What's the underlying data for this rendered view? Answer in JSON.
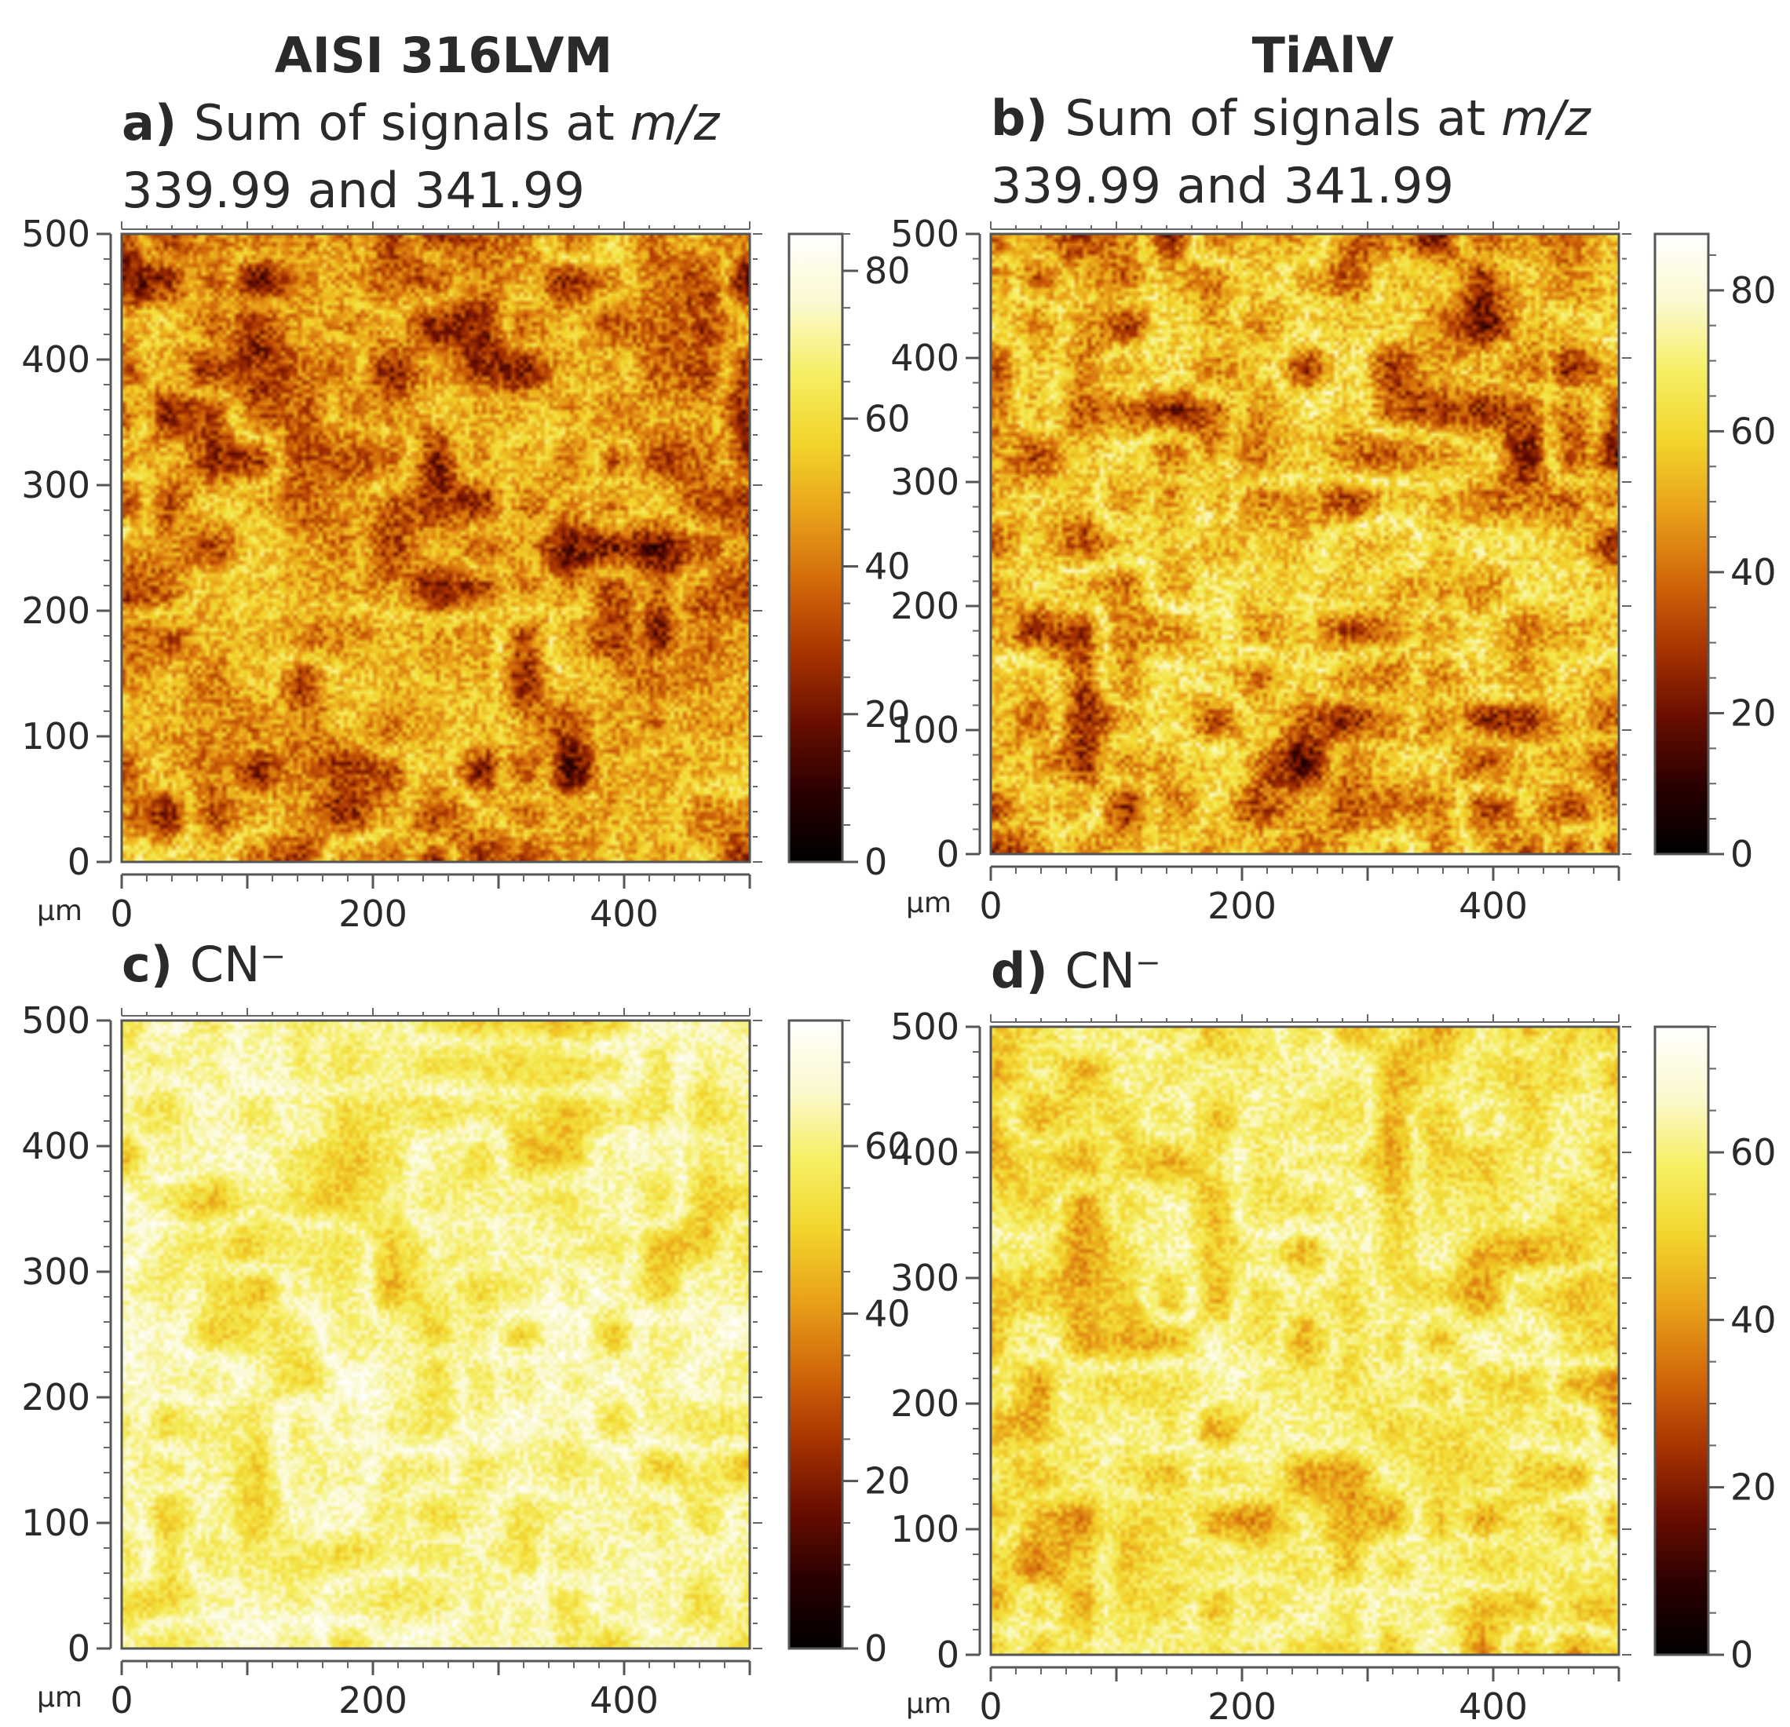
{
  "column_headings": [
    "AISI 316LVM",
    "TiAlV"
  ],
  "colormap": [
    "#000000",
    "#2a0000",
    "#6a0e00",
    "#a83400",
    "#d2690a",
    "#e9a21a",
    "#f2d52c",
    "#f6ef64",
    "#fbf9cf",
    "#ffffff"
  ],
  "chart_data": [
    {
      "type": "heatmap",
      "panel": "a",
      "title_letter": "a)",
      "title_lines": [
        "Sum of signals at m/z",
        "339.99 and 341.99"
      ],
      "title_italic": "m/z",
      "x_unit": "µm",
      "xlim": [
        0,
        500
      ],
      "ylim": [
        0,
        500
      ],
      "x_ticks": [
        "0",
        "200",
        "400"
      ],
      "y_ticks": [
        "0",
        "100",
        "200",
        "300",
        "400",
        "500"
      ],
      "colorbar_range": [
        0,
        85
      ],
      "colorbar_ticks": [
        "0",
        "20",
        "40",
        "60",
        "80"
      ],
      "intensity_mean": 40,
      "intensity_spread": 26
    },
    {
      "type": "heatmap",
      "panel": "b",
      "title_letter": "b)",
      "title_lines": [
        "Sum of signals at m/z",
        "339.99 and 341.99"
      ],
      "title_italic": "m/z",
      "x_unit": "µm",
      "xlim": [
        0,
        500
      ],
      "ylim": [
        0,
        500
      ],
      "x_ticks": [
        "0",
        "200",
        "400"
      ],
      "y_ticks": [
        "0",
        "100",
        "200",
        "300",
        "400",
        "500"
      ],
      "colorbar_range": [
        0,
        88
      ],
      "colorbar_ticks": [
        "0",
        "20",
        "40",
        "60",
        "80"
      ],
      "intensity_mean": 45,
      "intensity_spread": 28
    },
    {
      "type": "heatmap",
      "panel": "c",
      "title_letter": "c)",
      "title_lines": [
        "CN⁻"
      ],
      "x_unit": "µm",
      "xlim": [
        0,
        500
      ],
      "ylim": [
        0,
        500
      ],
      "x_ticks": [
        "0",
        "200",
        "400"
      ],
      "y_ticks": [
        "0",
        "100",
        "200",
        "300",
        "400",
        "500"
      ],
      "colorbar_range": [
        0,
        75
      ],
      "colorbar_ticks": [
        "0",
        "20",
        "40",
        "60"
      ],
      "intensity_mean": 58,
      "intensity_spread": 14
    },
    {
      "type": "heatmap",
      "panel": "d",
      "title_letter": "d)",
      "title_lines": [
        "CN⁻"
      ],
      "x_unit": "µm",
      "xlim": [
        0,
        500
      ],
      "ylim": [
        0,
        500
      ],
      "x_ticks": [
        "0",
        "200",
        "400"
      ],
      "y_ticks": [
        "0",
        "100",
        "200",
        "300",
        "400",
        "500"
      ],
      "colorbar_range": [
        0,
        75
      ],
      "colorbar_ticks": [
        "0",
        "20",
        "40",
        "60"
      ],
      "intensity_mean": 52,
      "intensity_spread": 16
    }
  ]
}
